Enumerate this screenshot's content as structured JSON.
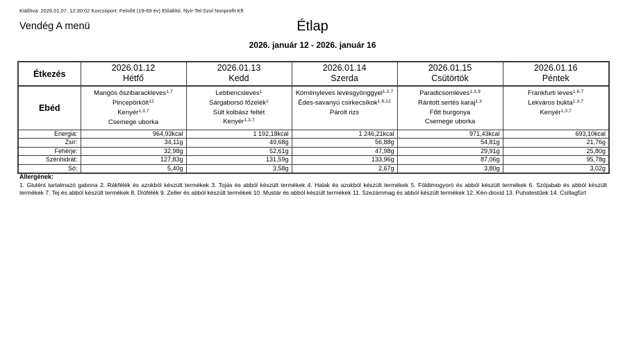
{
  "meta_line": "Kiállítva: 2026.01.07. 12:30:02 Korcsoport: Felnőtt (19-69 év) Előállító: Nyír-Tel-Szol Nonprofit Kft",
  "menu_name": "Vendég A menü",
  "title": "Étlap",
  "date_range": "2026. január 12 - 2026. január 16",
  "table": {
    "corner_header": "Étkezés",
    "meal_label": "Ebéd",
    "days": [
      {
        "date": "2026.01.12",
        "day": "Hétfő",
        "items": [
          {
            "text": "Mangós őszibarackleves",
            "sup": "1,7"
          },
          {
            "text": "Pincepörkölt",
            "sup": "12"
          },
          {
            "text": "Kenyér",
            "sup": "1,3,7"
          },
          {
            "text": "Csemege uborka",
            "sup": ""
          }
        ]
      },
      {
        "date": "2026.01.13",
        "day": "Kedd",
        "items": [
          {
            "text": "Lebbencsleves",
            "sup": "1"
          },
          {
            "text": "Sárgaborsó főzelék",
            "sup": "1"
          },
          {
            "text": "Sült kolbász feltét",
            "sup": ""
          },
          {
            "text": "Kenyér",
            "sup": "1,3,7"
          }
        ]
      },
      {
        "date": "2026.01.14",
        "day": "Szerda",
        "items": [
          {
            "text": "Köményleves levesgyönggyel",
            "sup": "1,3,7"
          },
          {
            "text": "Édes-savanyú csirkecsíkok",
            "sup": "1,6,12"
          },
          {
            "text": "Párolt rizs",
            "sup": ""
          }
        ]
      },
      {
        "date": "2026.01.15",
        "day": "Csütörtök",
        "items": [
          {
            "text": "Paradicsomleves",
            "sup": "1,3,9"
          },
          {
            "text": "Rántott sertés karaj",
            "sup": "1,3"
          },
          {
            "text": "Főtt burgonya",
            "sup": ""
          },
          {
            "text": "Csemege uborka",
            "sup": ""
          }
        ]
      },
      {
        "date": "2026.01.16",
        "day": "Péntek",
        "items": [
          {
            "text": "Frankfurti leves",
            "sup": "1,6,7"
          },
          {
            "text": "Lekváros bukta",
            "sup": "1,3,7"
          },
          {
            "text": "Kenyér",
            "sup": "1,3,7"
          }
        ]
      }
    ],
    "nutrition": {
      "rows": [
        {
          "label": "Energia:",
          "values": [
            "964,93kcal",
            "1 192,18kcal",
            "1 246,21kcal",
            "971,43kcal",
            "693,10kcal"
          ]
        },
        {
          "label": "Zsír:",
          "values": [
            "34,11g",
            "49,68g",
            "56,88g",
            "54,81g",
            "21,76g"
          ]
        },
        {
          "label": "Fehérje:",
          "values": [
            "32,98g",
            "52,61g",
            "47,98g",
            "29,91g",
            "25,80g"
          ]
        },
        {
          "label": "Szénhidrát:",
          "values": [
            "127,83g",
            "131,59g",
            "133,96g",
            "87,06g",
            "95,78g"
          ]
        },
        {
          "label": "Só:",
          "values": [
            "5,40g",
            "3,58g",
            "2,67g",
            "3,80g",
            "3,02g"
          ]
        }
      ]
    }
  },
  "allergens": {
    "heading": "Allergének:",
    "text": "1. Glutént tartalmazó gabona 2. Rákfélék és azokból készült termékek 3. Tojás és abból készült termékek 4. Halak és azokból készült termékek 5. Földimogyoró és abból készült termékek 6. Szójabab és abból készült termékek 7. Tej és abból készült termékek 8. Diófélék 9. Zeller és abból készült termékek 10. Mustár és abból készült termékek 11. Szezámmag és abból készült termékek 12. Kén-dioxid 13. Puhatestűek 14. Csillagfürt"
  }
}
